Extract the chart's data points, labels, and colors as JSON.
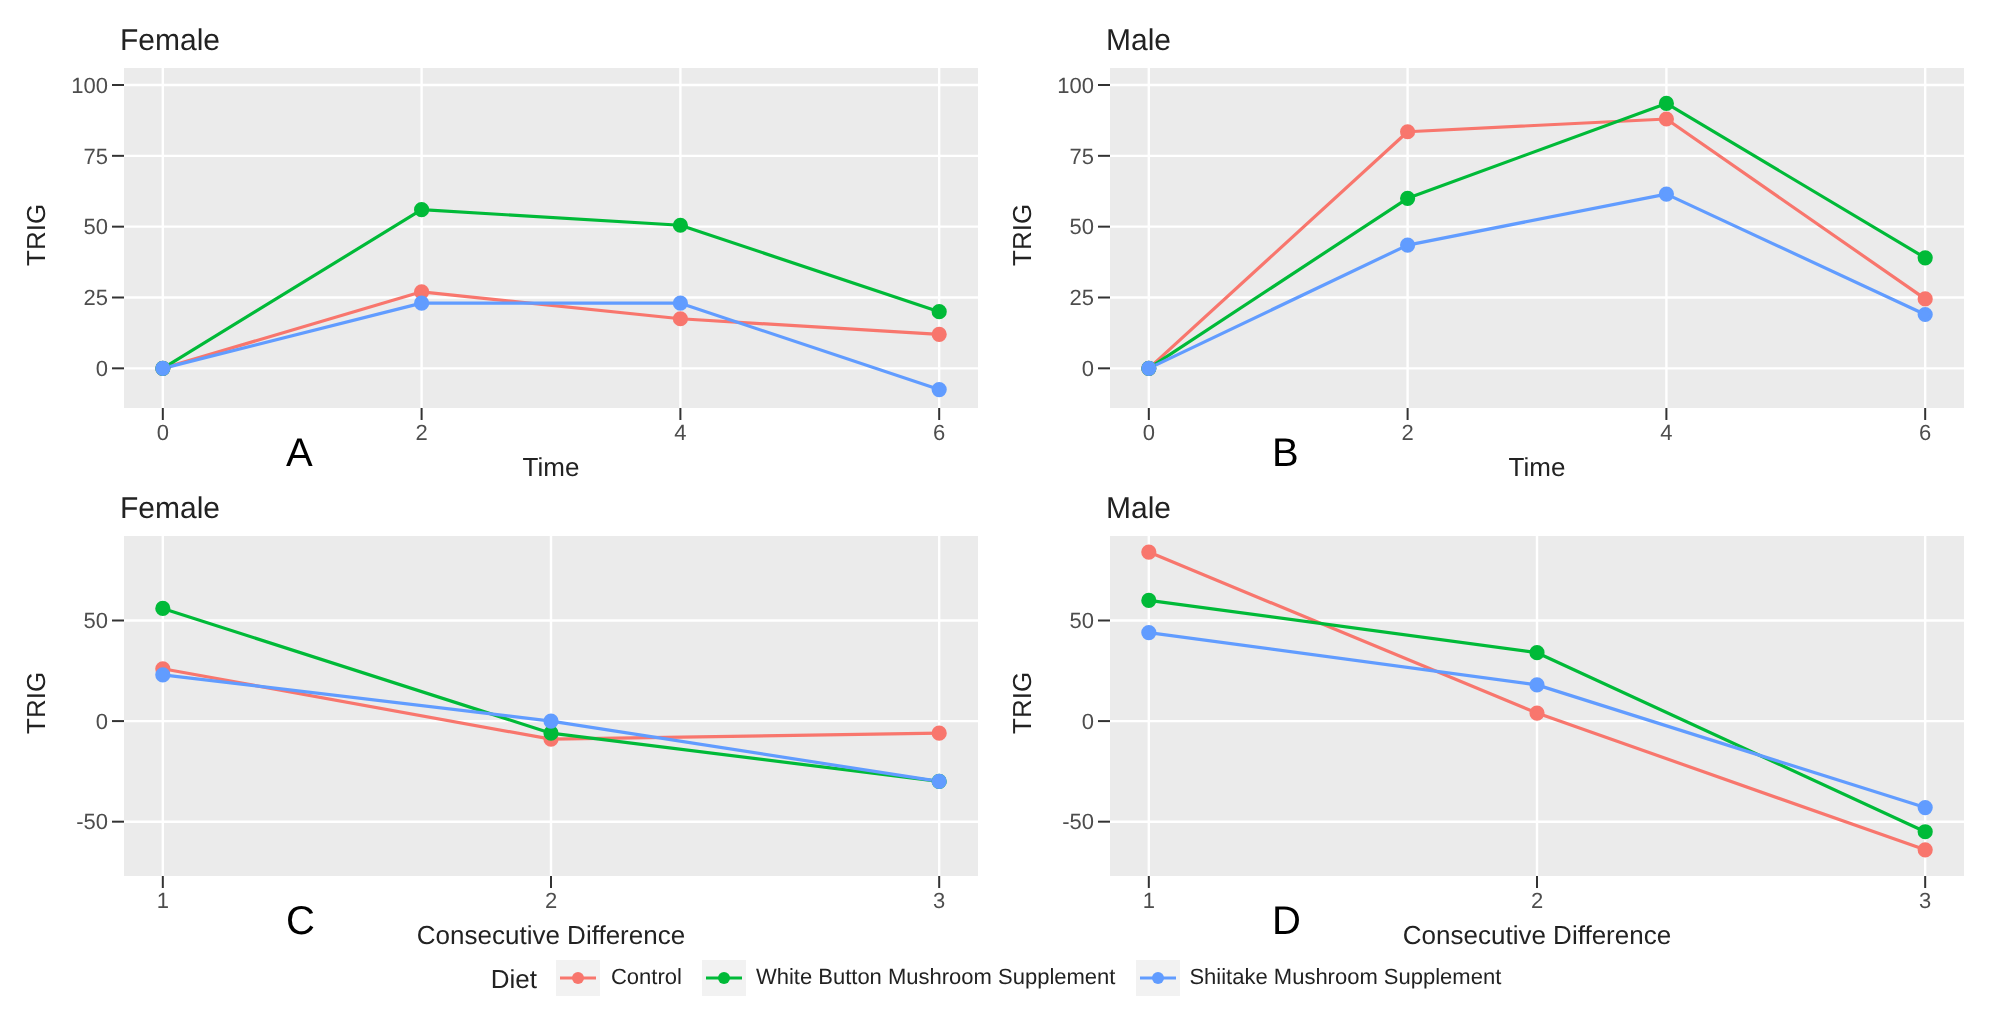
{
  "chart_data": [
    {
      "type": "line",
      "title": "Female",
      "xlabel": "Time",
      "ylabel": "TRIG",
      "annotations": [
        "A"
      ],
      "x": [
        0,
        2,
        4,
        6
      ],
      "xlim": [
        -0.3,
        6.3
      ],
      "xticks": [
        0,
        2,
        4,
        6
      ],
      "ylim": [
        -14,
        106
      ],
      "yticks": [
        0,
        25,
        50,
        75,
        100
      ],
      "grid": true,
      "marker": "circle",
      "legend": "bottom",
      "legend_title": "Diet",
      "series": [
        {
          "name": "Control",
          "color": "#f8766d",
          "values": [
            0,
            27,
            17.5,
            12
          ]
        },
        {
          "name": "White Button Mushroom Supplement",
          "color": "#00ba38",
          "values": [
            0,
            56,
            50.5,
            20
          ]
        },
        {
          "name": "Shiitake Mushroom Supplement",
          "color": "#619cff",
          "values": [
            0,
            23,
            23,
            -7.5
          ]
        }
      ]
    },
    {
      "type": "line",
      "title": "Male",
      "xlabel": "Time",
      "ylabel": "TRIG",
      "annotations": [
        "B"
      ],
      "x": [
        0,
        2,
        4,
        6
      ],
      "xlim": [
        -0.3,
        6.3
      ],
      "xticks": [
        0,
        2,
        4,
        6
      ],
      "ylim": [
        -14,
        106
      ],
      "yticks": [
        0,
        25,
        50,
        75,
        100
      ],
      "grid": true,
      "marker": "circle",
      "legend": "bottom",
      "series": [
        {
          "name": "Control",
          "color": "#f8766d",
          "values": [
            0,
            83.5,
            88,
            24.5
          ]
        },
        {
          "name": "White Button Mushroom Supplement",
          "color": "#00ba38",
          "values": [
            0,
            60,
            93.5,
            39
          ]
        },
        {
          "name": "Shiitake Mushroom Supplement",
          "color": "#619cff",
          "values": [
            0,
            43.5,
            61.5,
            19
          ]
        }
      ]
    },
    {
      "type": "line",
      "title": "Female",
      "xlabel": "Consecutive Difference",
      "ylabel": "TRIG",
      "annotations": [
        "C"
      ],
      "x": [
        1,
        2,
        3
      ],
      "xlim": [
        0.9,
        3.1
      ],
      "xticks": [
        1,
        2,
        3
      ],
      "ylim": [
        -77,
        92
      ],
      "yticks": [
        -50,
        0,
        50
      ],
      "grid": true,
      "marker": "circle",
      "legend": "bottom",
      "series": [
        {
          "name": "Control",
          "color": "#f8766d",
          "values": [
            26,
            -9,
            -6
          ]
        },
        {
          "name": "White Button Mushroom Supplement",
          "color": "#00ba38",
          "values": [
            56,
            -6,
            -30
          ]
        },
        {
          "name": "Shiitake Mushroom Supplement",
          "color": "#619cff",
          "values": [
            23,
            0,
            -30
          ]
        }
      ]
    },
    {
      "type": "line",
      "title": "Male",
      "xlabel": "Consecutive Difference",
      "ylabel": "TRIG",
      "annotations": [
        "D"
      ],
      "x": [
        1,
        2,
        3
      ],
      "xlim": [
        0.9,
        3.1
      ],
      "xticks": [
        1,
        2,
        3
      ],
      "ylim": [
        -77,
        92
      ],
      "yticks": [
        -50,
        0,
        50
      ],
      "grid": true,
      "marker": "circle",
      "legend": "bottom",
      "series": [
        {
          "name": "Control",
          "color": "#f8766d",
          "values": [
            84,
            4,
            -64
          ]
        },
        {
          "name": "White Button Mushroom Supplement",
          "color": "#00ba38",
          "values": [
            60,
            34,
            -55
          ]
        },
        {
          "name": "Shiitake Mushroom Supplement",
          "color": "#619cff",
          "values": [
            44,
            18,
            -43
          ]
        }
      ]
    }
  ]
}
